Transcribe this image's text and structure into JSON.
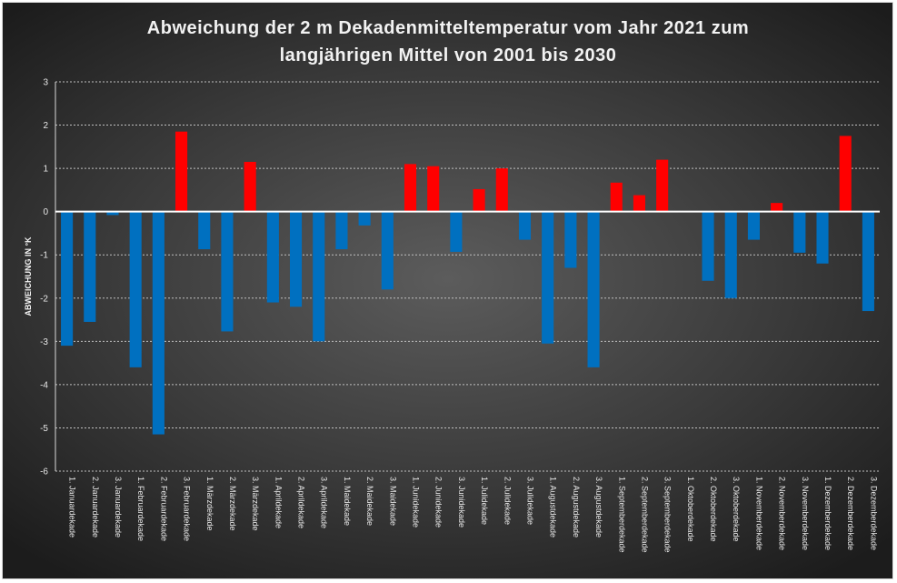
{
  "chart_data": {
    "type": "bar",
    "title": "Abweichung der 2 m Dekadenmitteltemperatur  vom Jahr 2021 zum langjährigen Mittel von 2001 bis 2030",
    "title_lines": [
      "Abweichung der 2 m Dekadenmitteltemperatur  vom Jahr 2021 zum",
      "langjährigen Mittel von 2001 bis 2030"
    ],
    "xlabel": "",
    "ylabel": "ABWEICHUNG IN °K",
    "ylim": [
      -6,
      3
    ],
    "yticks": [
      "3",
      "2",
      "1",
      "0",
      "-1",
      "-2",
      "-3",
      "-4",
      "-5",
      "-6"
    ],
    "grid": "horizontal dotted",
    "colors": {
      "positive": "#ff0000",
      "negative": "#0070c0"
    },
    "categories": [
      "1. Januardekade",
      "2. Januardekade",
      "3. Januardekade",
      "1. Februardekade",
      "2. Februardekade",
      "3. Februardekade",
      "1. Märzdekade",
      "2. Märzdekade",
      "3. Märzdekade",
      "1. Aprildekade",
      "2. Aprildekade",
      "3. Aprildekade",
      "1. Maidekade",
      "2. Maidekade",
      "3. Maidekade",
      "1. Junidekade",
      "2. Junidekade",
      "3. Junidekade",
      "1. Julidekade",
      "2. Julidekade",
      "3. Julidekade",
      "1. Augustdekade",
      "2. Augustdekade",
      "3. Augustdekade",
      "1. Septemberdekade",
      "2. Septemberdekade",
      "3. Septemberdekade",
      "1. Oktoberdekade",
      "2. Oktoberdekade",
      "3. Oktoberdekade",
      "1. Novemberdekade",
      "2. Novemberdekade",
      "3. Novemberdekade",
      "1. Dezemberdekade",
      "2. Dezemberdekade",
      "3. Dezemberdekade"
    ],
    "values": [
      -3.1,
      -2.55,
      -0.08,
      -3.6,
      -5.15,
      1.85,
      -0.87,
      -2.77,
      1.15,
      -2.1,
      -2.2,
      -3.0,
      -0.87,
      -0.32,
      -1.8,
      1.1,
      1.05,
      -0.93,
      0.52,
      1.0,
      -0.65,
      -3.05,
      -1.3,
      -3.6,
      0.67,
      0.38,
      1.2,
      0.0,
      -1.6,
      -2.0,
      -0.65,
      0.2,
      -0.95,
      -1.2,
      1.75,
      -2.3
    ]
  }
}
